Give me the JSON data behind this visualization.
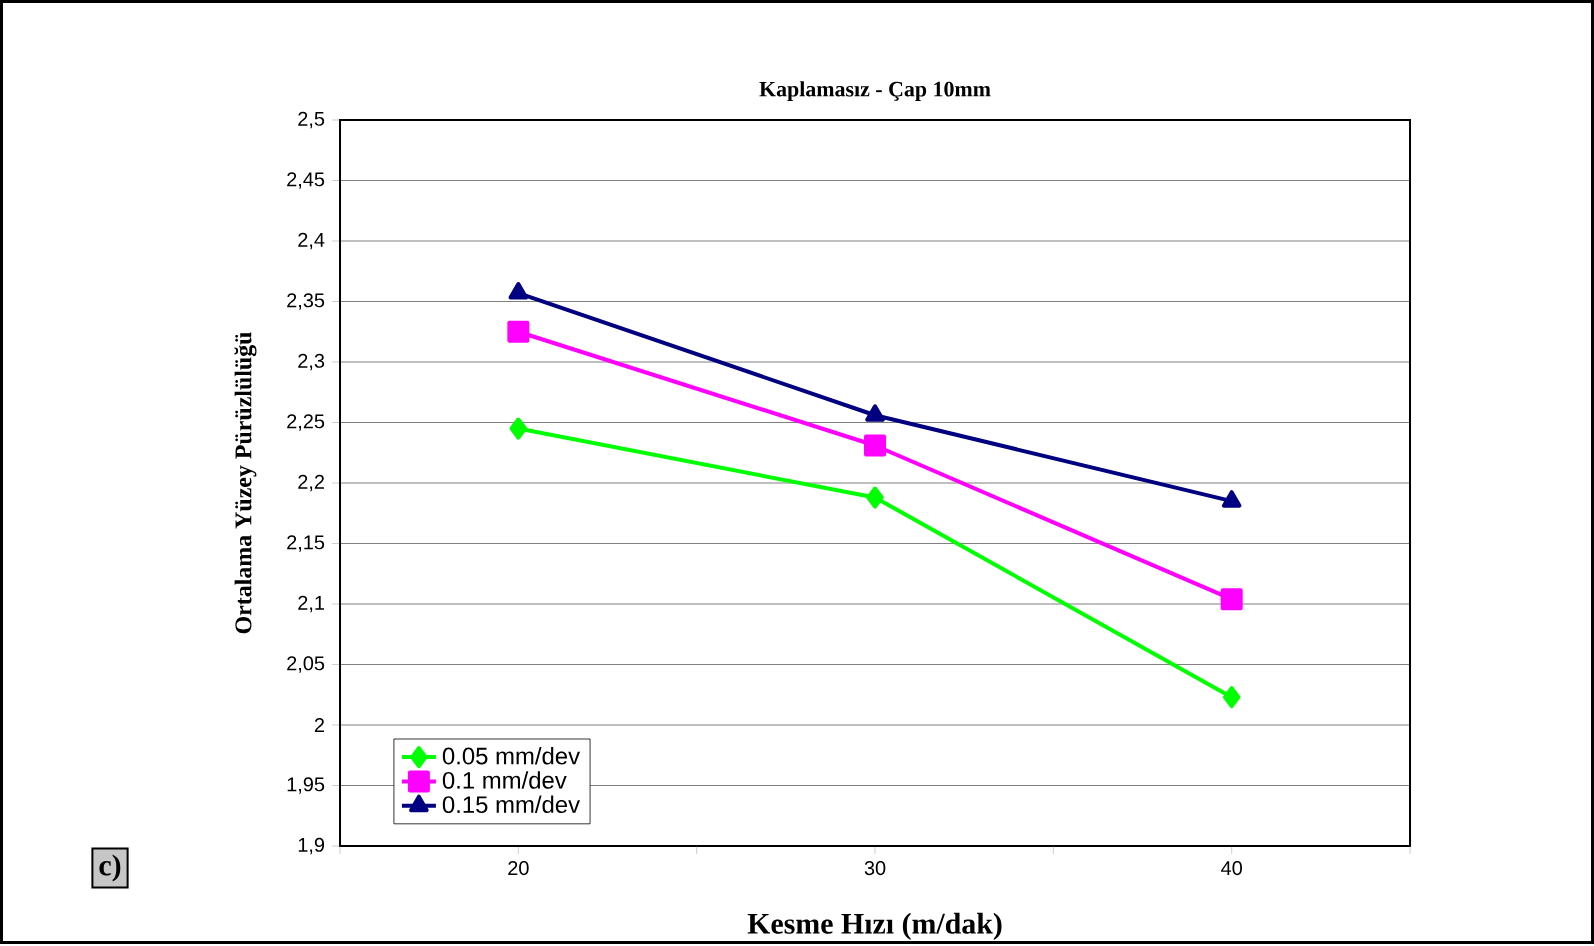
{
  "chart_data": {
    "type": "line",
    "title": "Kaplamasız - Çap 10mm",
    "xlabel": "Kesme Hızı (m/dak)",
    "ylabel": "Ortalama Yüzey Pürüzlülüğü",
    "categories": [
      "20",
      "30",
      "40"
    ],
    "series": [
      {
        "name": "0.05 mm/dev",
        "color": "#00ff00",
        "marker": "diamond",
        "values": [
          2.245,
          2.188,
          2.023
        ]
      },
      {
        "name": "0.1 mm/dev",
        "color": "#ff00ff",
        "marker": "square",
        "values": [
          2.325,
          2.231,
          2.104
        ]
      },
      {
        "name": "0.15 mm/dev",
        "color": "#000080",
        "marker": "triangle",
        "values": [
          2.357,
          2.256,
          2.185
        ]
      }
    ],
    "ylim": [
      1.9,
      2.5
    ],
    "yticks": [
      {
        "value": 1.9,
        "label": "1,9"
      },
      {
        "value": 1.95,
        "label": "1,95"
      },
      {
        "value": 2,
        "label": "2"
      },
      {
        "value": 2.05,
        "label": "2,05"
      },
      {
        "value": 2.1,
        "label": "2,1"
      },
      {
        "value": 2.15,
        "label": "2,15"
      },
      {
        "value": 2.2,
        "label": "2,2"
      },
      {
        "value": 2.25,
        "label": "2,25"
      },
      {
        "value": 2.3,
        "label": "2,3"
      },
      {
        "value": 2.35,
        "label": "2,35"
      },
      {
        "value": 2.4,
        "label": "2,4"
      },
      {
        "value": 2.45,
        "label": "2,45"
      },
      {
        "value": 2.5,
        "label": "2,5"
      }
    ],
    "grid": "y",
    "legend": "bottom left",
    "line_style": "solid",
    "annotations": [
      "c)"
    ]
  }
}
